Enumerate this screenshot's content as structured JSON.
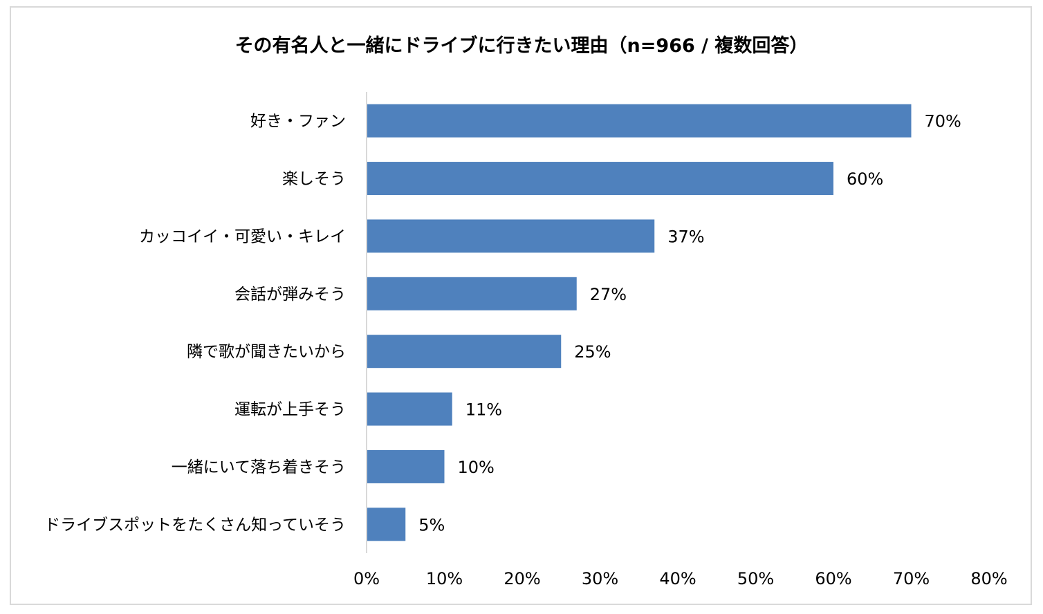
{
  "chart_data": {
    "type": "bar",
    "orientation": "horizontal",
    "title": "その有名人と一緒にドライブに行きたい理由（n=966 / 複数回答）",
    "categories": [
      "好き・ファン",
      "楽しそう",
      "カッコイイ・可愛い・キレイ",
      "会話が弾みそう",
      "隣で歌が聞きたいから",
      "運転が上手そう",
      "一緒にいて落ち着きそう",
      "ドライブスポットをたくさん知っていそう"
    ],
    "values": [
      70,
      60,
      37,
      27,
      25,
      11,
      10,
      5
    ],
    "data_labels": [
      "70%",
      "60%",
      "37%",
      "27%",
      "25%",
      "11%",
      "10%",
      "5%"
    ],
    "xlim": [
      0,
      80
    ],
    "x_ticks": [
      0,
      10,
      20,
      30,
      40,
      50,
      60,
      70,
      80
    ],
    "x_tick_labels": [
      "0%",
      "10%",
      "20%",
      "30%",
      "40%",
      "50%",
      "60%",
      "70%",
      "80%"
    ],
    "xlabel": "",
    "ylabel": "",
    "grid": false,
    "legend": "none",
    "bar_color": "#4f81bd"
  }
}
